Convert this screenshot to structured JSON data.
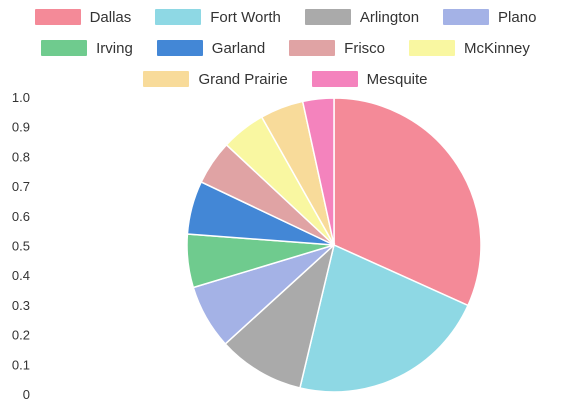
{
  "chart_data": {
    "type": "pie",
    "title": "",
    "categories": [
      "Dallas",
      "Fort Worth",
      "Arlington",
      "Plano",
      "Irving",
      "Garland",
      "Frisco",
      "McKinney",
      "Grand Prairie",
      "Mesquite"
    ],
    "values": [
      1300000,
      900000,
      390000,
      290000,
      240000,
      240000,
      200000,
      200000,
      195000,
      140000
    ],
    "colors": [
      "#F48A98",
      "#8ED8E4",
      "#AAAAAA",
      "#A4B2E6",
      "#6FCB8E",
      "#4387D6",
      "#E0A3A4",
      "#F9F7A1",
      "#F8DB9A",
      "#F483BD"
    ],
    "yticks": [
      "1.0",
      "0.9",
      "0.8",
      "0.7",
      "0.6",
      "0.5",
      "0.4",
      "0.3",
      "0.2",
      "0.1",
      "0"
    ],
    "ylim": [
      0,
      1
    ],
    "grid": false,
    "legend_position": "top"
  }
}
